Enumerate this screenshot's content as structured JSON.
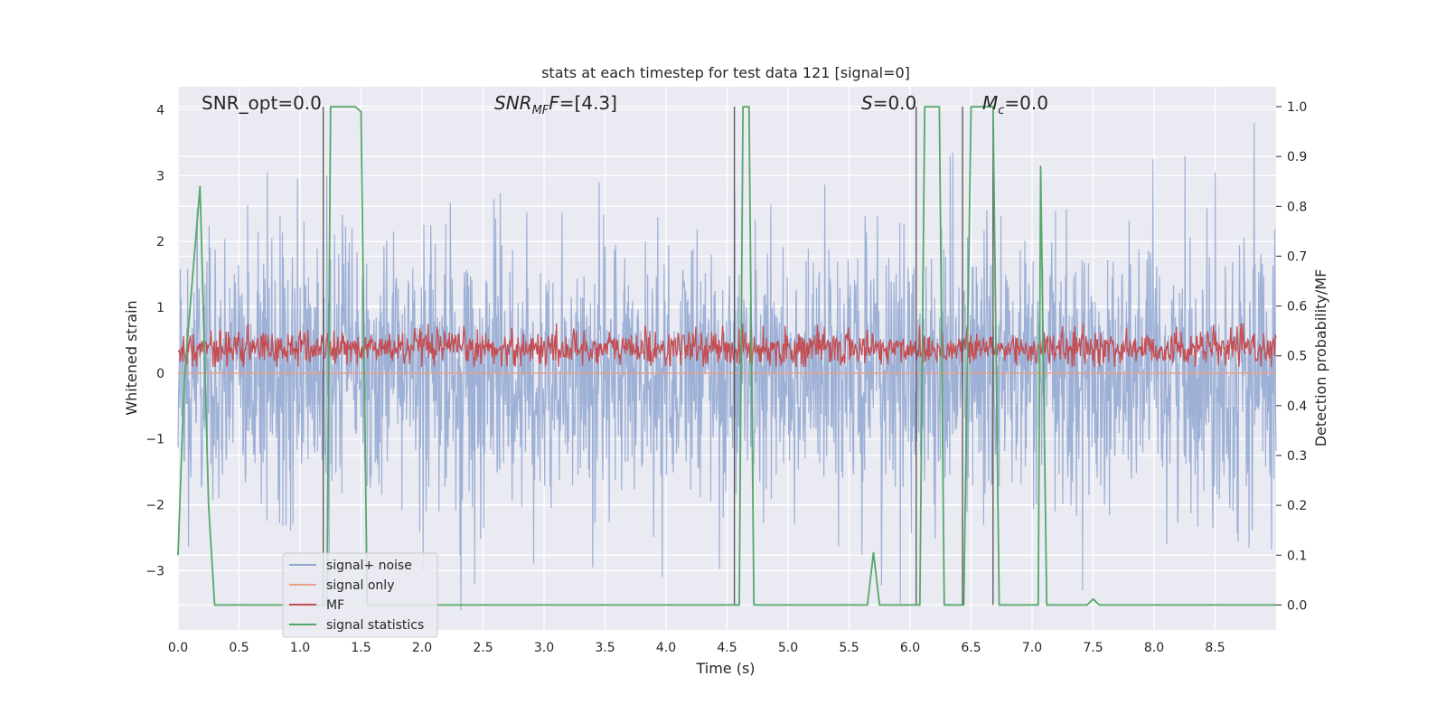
{
  "chart_data": {
    "type": "line",
    "title": "stats at each timestep for test data 121 [signal=0]",
    "xlabel": "Time (s)",
    "ylabel": "Whitened strain",
    "ylabel_right": "Detection probability/MF",
    "xlim": [
      0.0,
      9.0
    ],
    "ylim": [
      -3.9,
      4.35
    ],
    "ylim_right": [
      -0.05,
      1.04
    ],
    "x_ticks": [
      "0.0",
      "0.5",
      "1.0",
      "1.5",
      "2.0",
      "2.5",
      "3.0",
      "3.5",
      "4.0",
      "4.5",
      "5.0",
      "5.5",
      "6.0",
      "6.5",
      "7.0",
      "7.5",
      "8.0",
      "8.5"
    ],
    "y_ticks": [
      "4",
      "3",
      "2",
      "1",
      "0",
      "−1",
      "−2",
      "−3"
    ],
    "y_ticks_right": [
      "1.0",
      "0.9",
      "0.8",
      "0.7",
      "0.6",
      "0.5",
      "0.4",
      "0.3",
      "0.2",
      "0.1",
      "0.0"
    ],
    "grid": true,
    "legend_position": "lower-left",
    "annotations": {
      "snr_opt": "SNR_opt=0.0",
      "snr_mf_main": "SNR",
      "snr_mf_sub": "MF",
      "snr_mf_val": "=[4.3]",
      "s_main": "S",
      "s_val": "=0.0",
      "mc_main": "M",
      "mc_sub": "c",
      "mc_val": "=0.0"
    },
    "legend": [
      {
        "name": "signal+ noise",
        "color": "#8fa6d0"
      },
      {
        "name": "signal only",
        "color": "#e8a089"
      },
      {
        "name": "MF",
        "color": "#c44e52"
      },
      {
        "name": "signal statistics",
        "color": "#55a868"
      }
    ],
    "series": [
      {
        "name": "signal+ noise",
        "axis": "left",
        "color": "#8fa6d0",
        "description": "whitened strain noise, roughly within ±2.5, peaks near 3.8 and -3.6",
        "spikes": [
          {
            "x": 0.57,
            "y": 2.55
          },
          {
            "x": 0.73,
            "y": 3.05
          },
          {
            "x": 0.98,
            "y": 2.95
          },
          {
            "x": 1.22,
            "y": 3.0
          },
          {
            "x": 2.32,
            "y": -3.6
          },
          {
            "x": 2.43,
            "y": -3.2
          },
          {
            "x": 3.4,
            "y": -2.95
          },
          {
            "x": 3.97,
            "y": -3.1
          },
          {
            "x": 5.92,
            "y": -3.5
          },
          {
            "x": 6.35,
            "y": 3.35
          },
          {
            "x": 8.5,
            "y": 3.05
          },
          {
            "x": 8.82,
            "y": 3.8
          },
          {
            "x": 8.78,
            "y": -2.65
          }
        ]
      },
      {
        "name": "signal only",
        "axis": "left",
        "color": "#e8a089",
        "x": [
          0.0,
          9.0
        ],
        "y": [
          0.0,
          0.0
        ]
      },
      {
        "name": "MF",
        "axis": "right",
        "color": "#c44e52",
        "description": "matched filter output, fluctuating between about 0.48 and 0.56"
      },
      {
        "name": "signal statistics",
        "axis": "right",
        "color": "#55a868",
        "x": [
          0.0,
          0.05,
          0.1,
          0.18,
          0.25,
          0.3,
          0.5,
          1.0,
          1.18,
          1.22,
          1.25,
          1.45,
          1.5,
          1.55,
          1.6,
          4.55,
          4.6,
          4.63,
          4.68,
          4.72,
          5.0,
          5.6,
          5.65,
          5.7,
          5.75,
          6.05,
          6.08,
          6.12,
          6.24,
          6.28,
          6.38,
          6.44,
          6.5,
          6.68,
          6.73,
          7.0,
          7.05,
          7.07,
          7.12,
          7.2,
          7.45,
          7.5,
          7.55,
          9.0
        ],
        "y": [
          0.1,
          0.45,
          0.6,
          0.84,
          0.2,
          0.0,
          0.0,
          0.0,
          0.0,
          0.0,
          1.0,
          1.0,
          0.99,
          0.0,
          0.0,
          0.0,
          0.0,
          1.0,
          1.0,
          0.0,
          0.0,
          0.0,
          0.0,
          0.105,
          0.0,
          0.0,
          0.0,
          1.0,
          1.0,
          0.0,
          0.0,
          0.0,
          1.0,
          1.0,
          0.0,
          0.0,
          0.0,
          0.88,
          0.0,
          0.0,
          0.0,
          0.012,
          0.0,
          0.0
        ]
      }
    ],
    "vertical_markers": [
      1.19,
      4.56,
      6.05,
      6.43,
      6.68
    ]
  }
}
